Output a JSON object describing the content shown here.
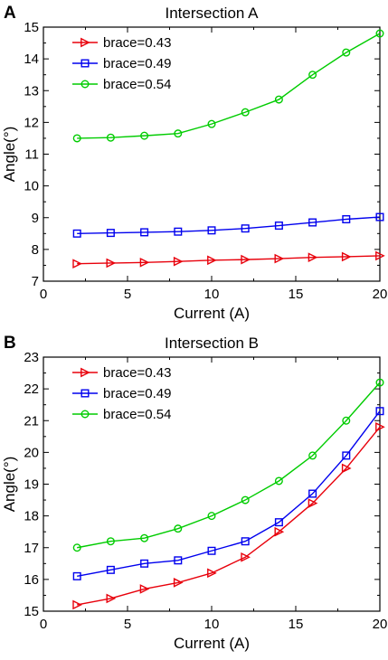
{
  "chart_data": [
    {
      "panel_letter": "A",
      "type": "line",
      "title": "Intersection A",
      "xlabel": "Current (A)",
      "ylabel": "Angle(°)",
      "xlim": [
        0,
        20
      ],
      "ylim": [
        7,
        15
      ],
      "xticks": [
        0,
        5,
        10,
        15,
        20
      ],
      "yticks": [
        7,
        8,
        9,
        10,
        11,
        12,
        13,
        14,
        15
      ],
      "grid": false,
      "legend_position": "top-left",
      "x": [
        2,
        4,
        6,
        8,
        10,
        12,
        14,
        16,
        18,
        20
      ],
      "series": [
        {
          "name": "brace=0.43",
          "color": "#e8000b",
          "marker": "triangle-right",
          "values": [
            7.55,
            7.57,
            7.59,
            7.62,
            7.66,
            7.68,
            7.71,
            7.75,
            7.77,
            7.8
          ]
        },
        {
          "name": "brace=0.49",
          "color": "#0000ee",
          "marker": "square",
          "values": [
            8.5,
            8.52,
            8.54,
            8.56,
            8.6,
            8.66,
            8.75,
            8.85,
            8.95,
            9.02
          ]
        },
        {
          "name": "brace=0.54",
          "color": "#00cc00",
          "marker": "circle",
          "values": [
            11.5,
            11.52,
            11.58,
            11.65,
            11.95,
            12.32,
            12.72,
            13.5,
            14.2,
            14.8
          ]
        }
      ]
    },
    {
      "panel_letter": "B",
      "type": "line",
      "title": "Intersection B",
      "xlabel": "Current (A)",
      "ylabel": "Angle(°)",
      "xlim": [
        0,
        20
      ],
      "ylim": [
        15,
        23
      ],
      "xticks": [
        0,
        5,
        10,
        15,
        20
      ],
      "yticks": [
        15,
        16,
        17,
        18,
        19,
        20,
        21,
        22,
        23
      ],
      "grid": false,
      "legend_position": "top-left",
      "x": [
        2,
        4,
        6,
        8,
        10,
        12,
        14,
        16,
        18,
        20
      ],
      "series": [
        {
          "name": "brace=0.43",
          "color": "#e8000b",
          "marker": "triangle-right",
          "values": [
            15.2,
            15.4,
            15.7,
            15.9,
            16.2,
            16.7,
            17.5,
            18.4,
            19.5,
            20.8
          ]
        },
        {
          "name": "brace=0.49",
          "color": "#0000ee",
          "marker": "square",
          "values": [
            16.1,
            16.3,
            16.5,
            16.6,
            16.9,
            17.2,
            17.8,
            18.7,
            19.9,
            21.3
          ]
        },
        {
          "name": "brace=0.54",
          "color": "#00cc00",
          "marker": "circle",
          "values": [
            17.0,
            17.2,
            17.3,
            17.6,
            18.0,
            18.5,
            19.1,
            19.9,
            21.0,
            22.2
          ]
        }
      ]
    }
  ]
}
